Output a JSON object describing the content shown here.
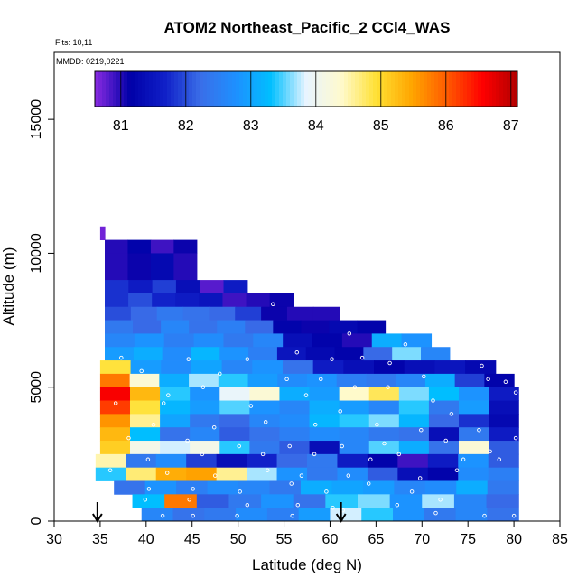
{
  "chart_data": {
    "type": "heatmap",
    "title": "ATOM2 Northeast_Pacific_2 CCl4_WAS",
    "annotations": [
      "Flts: 10,11",
      "MMDD: 0219,0221"
    ],
    "xlabel": "Latitude (deg N)",
    "ylabel": "Altitude (m)",
    "xlim": [
      30,
      85
    ],
    "ylim": [
      0,
      17500
    ],
    "xticks": [
      30,
      35,
      40,
      45,
      50,
      55,
      60,
      65,
      70,
      75,
      80,
      85
    ],
    "yticks": [
      0,
      5000,
      10000,
      15000
    ],
    "colorbar": {
      "placement": "top-inside",
      "range": [
        80.6,
        87.1
      ],
      "ticks": [
        81,
        82,
        83,
        84,
        85,
        86,
        87
      ],
      "colors": [
        "#8a2be2",
        "#0000a8",
        "#1020c8",
        "#3a6ee8",
        "#1e90ff",
        "#00bfff",
        "#e8f4ff",
        "#fffacd",
        "#ffe033",
        "#ffa500",
        "#ff5a00",
        "#ff0000",
        "#b00000"
      ]
    },
    "markers": [
      {
        "x": 34.7,
        "symbol": "down-arrow"
      },
      {
        "x": 61.2,
        "symbol": "down-arrow"
      }
    ],
    "altitude_bands": [
      {
        "y": [
          10500,
          11000
        ],
        "x": [
          35.0,
          35.5
        ],
        "v": [
          80.7
        ]
      },
      {
        "y": [
          10000,
          10500
        ],
        "x": [
          35.5,
          45.5
        ],
        "v": [
          81.0,
          81.2,
          80.9,
          81.1
        ]
      },
      {
        "y": [
          9000,
          10000
        ],
        "x": [
          35.5,
          45.5
        ],
        "v": [
          81.0,
          81.1,
          81.3,
          81.0
        ]
      },
      {
        "y": [
          8500,
          9000
        ],
        "x": [
          35.5,
          51.0
        ],
        "v": [
          81.8,
          81.6,
          81.9,
          81.4,
          80.8,
          81.6
        ]
      },
      {
        "y": [
          8000,
          8500
        ],
        "x": [
          35.5,
          56.0
        ],
        "v": [
          81.8,
          82.0,
          81.7,
          81.6,
          81.5,
          80.9,
          81.0,
          81.1
        ]
      },
      {
        "y": [
          7500,
          8000
        ],
        "x": [
          35.5,
          61.0
        ],
        "v": [
          82.0,
          82.2,
          82.4,
          82.3,
          82.2,
          81.9,
          81.1,
          81.0,
          81.0
        ]
      },
      {
        "y": [
          7000,
          7500
        ],
        "x": [
          35.5,
          66.0
        ],
        "v": [
          82.4,
          82.2,
          82.6,
          82.3,
          82.5,
          82.2,
          81.2,
          81.1,
          81.3,
          81.2
        ]
      },
      {
        "y": [
          6500,
          7000
        ],
        "x": [
          35.5,
          71.0
        ],
        "v": [
          82.6,
          82.8,
          82.5,
          82.7,
          82.4,
          82.6,
          81.4,
          81.2,
          81.0,
          83.1,
          82.8
        ]
      },
      {
        "y": [
          6000,
          6500
        ],
        "x": [
          35.5,
          73.0
        ],
        "v": [
          82.9,
          83.1,
          82.7,
          83.2,
          82.8,
          82.5,
          81.5,
          81.3,
          81.2,
          82.2,
          83.6,
          82.6
        ]
      },
      {
        "y": [
          5500,
          6000
        ],
        "x": [
          35.0,
          78.0
        ],
        "v": [
          84.9,
          82.9,
          82.7,
          83.0,
          82.6,
          82.8,
          82.3,
          81.6,
          81.4,
          81.2,
          81.4,
          81.5,
          81.3
        ]
      },
      {
        "y": [
          5000,
          5500
        ],
        "x": [
          35.0,
          80.0
        ],
        "v": [
          85.8,
          84.3,
          83.1,
          83.7,
          83.4,
          82.9,
          82.7,
          82.8,
          82.5,
          82.4,
          82.6,
          83.1,
          81.9,
          81.2
        ]
      },
      {
        "y": [
          4500,
          5000
        ],
        "x": [
          35.0,
          80.5
        ],
        "v": [
          86.6,
          85.3,
          83.4,
          82.8,
          83.9,
          84.3,
          83.1,
          82.9,
          84.4,
          84.8,
          83.6,
          83.3,
          82.8,
          81.6
        ]
      },
      {
        "y": [
          4000,
          4500
        ],
        "x": [
          35.0,
          80.5
        ],
        "v": [
          86.2,
          84.9,
          83.2,
          82.9,
          83.5,
          82.8,
          82.6,
          83.1,
          82.9,
          82.6,
          83.4,
          82.4,
          82.9,
          81.4
        ]
      },
      {
        "y": [
          3500,
          4000
        ],
        "x": [
          35.0,
          80.5
        ],
        "v": [
          85.6,
          84.6,
          83.0,
          82.4,
          82.2,
          82.6,
          82.7,
          83.2,
          83.4,
          83.6,
          83.2,
          82.2,
          81.8,
          81.3
        ]
      },
      {
        "y": [
          3000,
          3500
        ],
        "x": [
          35.0,
          80.5
        ],
        "v": [
          85.3,
          83.3,
          82.3,
          82.6,
          82.1,
          82.3,
          82.5,
          82.7,
          82.6,
          82.4,
          82.3,
          81.4,
          82.4,
          81.6
        ]
      },
      {
        "y": [
          2500,
          3000
        ],
        "x": [
          35.0,
          80.5
        ],
        "v": [
          85.1,
          84.1,
          83.8,
          84.1,
          83.4,
          82.4,
          82.1,
          81.4,
          82.6,
          83.5,
          83.1,
          82.3,
          84.3,
          82.1
        ]
      },
      {
        "y": [
          2000,
          2500
        ],
        "x": [
          34.5,
          80.5
        ],
        "v": [
          84.5,
          82.4,
          82.7,
          81.9,
          81.4,
          81.7,
          82.2,
          82.4,
          81.6,
          81.2,
          80.9,
          81.6,
          82.8,
          82.1
        ]
      },
      {
        "y": [
          1500,
          2000
        ],
        "x": [
          34.5,
          80.5
        ],
        "v": [
          83.4,
          84.7,
          85.4,
          85.5,
          84.6,
          83.7,
          82.8,
          82.4,
          82.7,
          82.1,
          81.4,
          81.2,
          82.7,
          82.5
        ]
      },
      {
        "y": [
          1000,
          1500
        ],
        "x": [
          36.5,
          80.5
        ],
        "v": [
          82.3,
          82.8,
          82.5,
          82.7,
          82.6,
          82.4,
          83.1,
          83.0,
          82.9,
          82.6,
          82.7,
          83.1,
          82.4
        ]
      },
      {
        "y": [
          500,
          1000
        ],
        "x": [
          38.5,
          80.5
        ],
        "v": [
          83.3,
          85.8,
          82.1,
          82.4,
          82.8,
          82.3,
          83.4,
          83.6,
          82.8,
          83.7,
          82.6,
          82.2
        ]
      },
      {
        "y": [
          0,
          500
        ],
        "x": [
          39.5,
          80.5
        ],
        "v": [
          82.6,
          82.3,
          82.4,
          82.7,
          82.5,
          82.9,
          83.8,
          83.4,
          82.8,
          82.4,
          82.6,
          82.3
        ]
      }
    ],
    "sample_points": [
      [
        37.3,
        6100
      ],
      [
        44.6,
        6050
      ],
      [
        51.0,
        6050
      ],
      [
        56.4,
        6300
      ],
      [
        60.2,
        6050
      ],
      [
        63.5,
        6100
      ],
      [
        66.5,
        5900
      ],
      [
        39.5,
        5600
      ],
      [
        48.0,
        5500
      ],
      [
        55.3,
        5300
      ],
      [
        59.0,
        5300
      ],
      [
        62.7,
        5000
      ],
      [
        70.2,
        5400
      ],
      [
        72.6,
        6700
      ],
      [
        77.2,
        5300
      ],
      [
        42.4,
        4700
      ],
      [
        46.2,
        5000
      ],
      [
        57.4,
        4700
      ],
      [
        66.3,
        5000
      ],
      [
        73.2,
        4000
      ],
      [
        79.1,
        5200
      ],
      [
        80.2,
        4800
      ],
      [
        36.7,
        4400
      ],
      [
        41.9,
        4400
      ],
      [
        51.4,
        4300
      ],
      [
        61.1,
        4100
      ],
      [
        71.2,
        4500
      ],
      [
        40.8,
        3600
      ],
      [
        47.4,
        3500
      ],
      [
        53.0,
        3700
      ],
      [
        58.4,
        3600
      ],
      [
        65.1,
        3600
      ],
      [
        69.9,
        3400
      ],
      [
        76.2,
        3400
      ],
      [
        80.2,
        3100
      ],
      [
        38.1,
        3100
      ],
      [
        44.5,
        3000
      ],
      [
        50.1,
        2800
      ],
      [
        55.6,
        2800
      ],
      [
        61.3,
        2800
      ],
      [
        65.9,
        2900
      ],
      [
        72.6,
        3000
      ],
      [
        77.4,
        2600
      ],
      [
        40.2,
        2300
      ],
      [
        46.1,
        2500
      ],
      [
        52.7,
        2500
      ],
      [
        58.3,
        2500
      ],
      [
        64.4,
        2300
      ],
      [
        67.5,
        2500
      ],
      [
        74.5,
        2300
      ],
      [
        78.4,
        2300
      ],
      [
        36.1,
        1900
      ],
      [
        42.3,
        1800
      ],
      [
        47.5,
        1700
      ],
      [
        53.2,
        1900
      ],
      [
        56.9,
        1700
      ],
      [
        62.0,
        1700
      ],
      [
        69.8,
        1600
      ],
      [
        73.8,
        1900
      ],
      [
        40.3,
        1200
      ],
      [
        45.1,
        1200
      ],
      [
        50.2,
        1100
      ],
      [
        55.8,
        1400
      ],
      [
        59.6,
        1100
      ],
      [
        64.2,
        1400
      ],
      [
        68.9,
        1100
      ],
      [
        39.9,
        800
      ],
      [
        44.7,
        800
      ],
      [
        51.0,
        600
      ],
      [
        56.5,
        600
      ],
      [
        60.3,
        500
      ],
      [
        67.3,
        600
      ],
      [
        72.0,
        800
      ],
      [
        41.8,
        200
      ],
      [
        45.1,
        200
      ],
      [
        49.9,
        200
      ],
      [
        55.9,
        200
      ],
      [
        61.4,
        400
      ],
      [
        71.5,
        300
      ],
      [
        76.8,
        200
      ],
      [
        80.0,
        200
      ],
      [
        53.8,
        8100
      ],
      [
        58.6,
        8200
      ],
      [
        62.1,
        7000
      ],
      [
        68.2,
        6600
      ],
      [
        72.9,
        6600
      ],
      [
        76.5,
        5800
      ]
    ]
  }
}
